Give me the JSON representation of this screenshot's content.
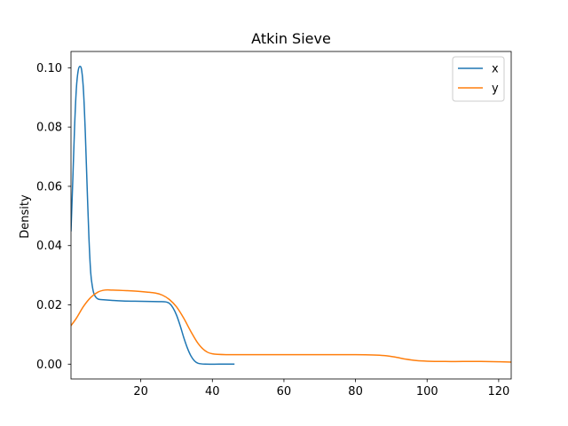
{
  "chart_data": {
    "type": "line",
    "title": "Atkin Sieve",
    "xlabel": "",
    "ylabel": "Density",
    "xlim": [
      0.5,
      123.5
    ],
    "ylim": [
      -0.005,
      0.1055
    ],
    "xticks": [
      20,
      40,
      60,
      80,
      100,
      120
    ],
    "yticks": [
      0.0,
      0.02,
      0.04,
      0.06,
      0.08,
      0.1
    ],
    "xtick_labels": [
      "20",
      "40",
      "60",
      "80",
      "100",
      "120"
    ],
    "ytick_labels": [
      "0.00",
      "0.02",
      "0.04",
      "0.06",
      "0.08",
      "0.10"
    ],
    "legend_position": "top-right",
    "grid": false,
    "series": [
      {
        "name": "x",
        "color": "#1f77b4",
        "points": [
          [
            0.5,
            0.045
          ],
          [
            1.0,
            0.062
          ],
          [
            1.5,
            0.08
          ],
          [
            2.0,
            0.093
          ],
          [
            2.5,
            0.099
          ],
          [
            3.0,
            0.1005
          ],
          [
            3.5,
            0.099
          ],
          [
            4.0,
            0.092
          ],
          [
            4.5,
            0.078
          ],
          [
            5.0,
            0.06
          ],
          [
            5.5,
            0.043
          ],
          [
            6.0,
            0.031
          ],
          [
            6.5,
            0.026
          ],
          [
            7.0,
            0.0235
          ],
          [
            8.0,
            0.022
          ],
          [
            10.0,
            0.0217
          ],
          [
            15.0,
            0.0213
          ],
          [
            20.0,
            0.0212
          ],
          [
            25.0,
            0.0211
          ],
          [
            27.0,
            0.021
          ],
          [
            28.0,
            0.0205
          ],
          [
            29.0,
            0.019
          ],
          [
            30.0,
            0.0165
          ],
          [
            31.0,
            0.013
          ],
          [
            32.0,
            0.009
          ],
          [
            33.0,
            0.0055
          ],
          [
            34.0,
            0.0028
          ],
          [
            35.0,
            0.0011
          ],
          [
            36.0,
            0.0003
          ],
          [
            38.0,
            0.0
          ],
          [
            42.0,
            0.0
          ],
          [
            46.0,
            0.0
          ]
        ]
      },
      {
        "name": "y",
        "color": "#ff7f0e",
        "points": [
          [
            0.5,
            0.013
          ],
          [
            2.0,
            0.0155
          ],
          [
            4.0,
            0.0195
          ],
          [
            6.0,
            0.0225
          ],
          [
            8.0,
            0.0243
          ],
          [
            10.0,
            0.025
          ],
          [
            12.0,
            0.025
          ],
          [
            16.0,
            0.0248
          ],
          [
            20.0,
            0.0245
          ],
          [
            24.0,
            0.024
          ],
          [
            26.0,
            0.0233
          ],
          [
            28.0,
            0.0218
          ],
          [
            30.0,
            0.0193
          ],
          [
            32.0,
            0.0155
          ],
          [
            34.0,
            0.011
          ],
          [
            36.0,
            0.007
          ],
          [
            38.0,
            0.0045
          ],
          [
            40.0,
            0.0035
          ],
          [
            44.0,
            0.0032
          ],
          [
            50.0,
            0.0032
          ],
          [
            60.0,
            0.0032
          ],
          [
            70.0,
            0.0032
          ],
          [
            80.0,
            0.0032
          ],
          [
            85.0,
            0.0031
          ],
          [
            88.0,
            0.0029
          ],
          [
            91.0,
            0.0024
          ],
          [
            94.0,
            0.0017
          ],
          [
            97.0,
            0.0012
          ],
          [
            100.0,
            0.001
          ],
          [
            105.0,
            0.0009
          ],
          [
            110.0,
            0.0009
          ],
          [
            115.0,
            0.0009
          ],
          [
            120.0,
            0.0008
          ],
          [
            123.5,
            0.0007
          ]
        ]
      }
    ]
  }
}
